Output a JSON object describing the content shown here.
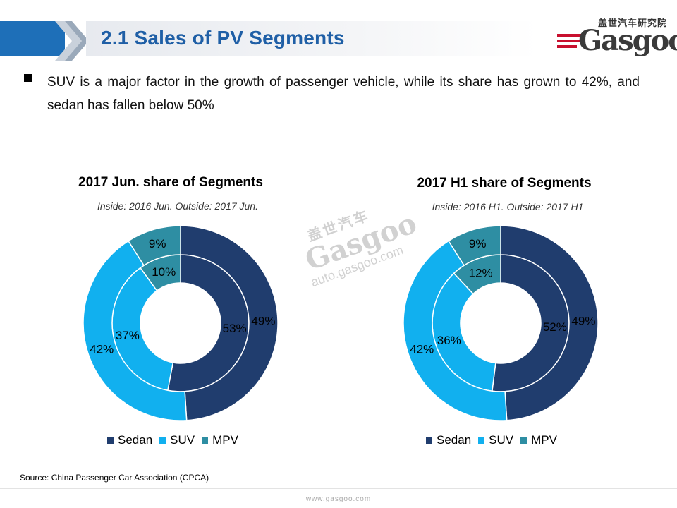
{
  "header": {
    "title": "2.1 Sales of PV Segments",
    "logo_cn": "盖世汽车研究院",
    "logo_word": "Gasgoo"
  },
  "bullet": {
    "text": "SUV is a major factor in the growth of passenger vehicle, while its share has grown to 42%, and sedan has fallen below 50%"
  },
  "colors": {
    "sedan": "#203d6e",
    "suv": "#11b0ef",
    "mpv": "#2e8ea3",
    "title_blue": "#1f5fa6"
  },
  "chart_data": [
    {
      "type": "pie",
      "title": "2017 Jun. share of Segments",
      "subtitle": "Inside: 2016 Jun.  Outside: 2017 Jun.",
      "categories": [
        "Sedan",
        "SUV",
        "MPV"
      ],
      "series": [
        {
          "name": "2016 Jun.",
          "ring": "inner",
          "values": [
            53,
            37,
            10
          ],
          "labels": [
            "53%",
            "37%",
            "10%"
          ]
        },
        {
          "name": "2017 Jun.",
          "ring": "outer",
          "values": [
            49,
            42,
            9
          ],
          "labels": [
            "49%",
            "42%",
            "9%"
          ]
        }
      ],
      "legend": "bottom"
    },
    {
      "type": "pie",
      "title": "2017 H1 share of Segments",
      "subtitle": "Inside: 2016 H1.  Outside: 2017 H1",
      "categories": [
        "Sedan",
        "SUV",
        "MPV"
      ],
      "series": [
        {
          "name": "2016 H1",
          "ring": "inner",
          "values": [
            52,
            36,
            12
          ],
          "labels": [
            "52%",
            "36%",
            "12%"
          ]
        },
        {
          "name": "2017 H1",
          "ring": "outer",
          "values": [
            49,
            42,
            9
          ],
          "labels": [
            "49%",
            "42%",
            "9%"
          ]
        }
      ],
      "legend": "bottom"
    }
  ],
  "watermark": {
    "cn": "盖世汽车",
    "word": "Gasgoo",
    "url": "auto.gasgoo.com"
  },
  "footer": {
    "source": "Source: China Passenger Car Association (CPCA)",
    "url": "www.gasgoo.com"
  }
}
